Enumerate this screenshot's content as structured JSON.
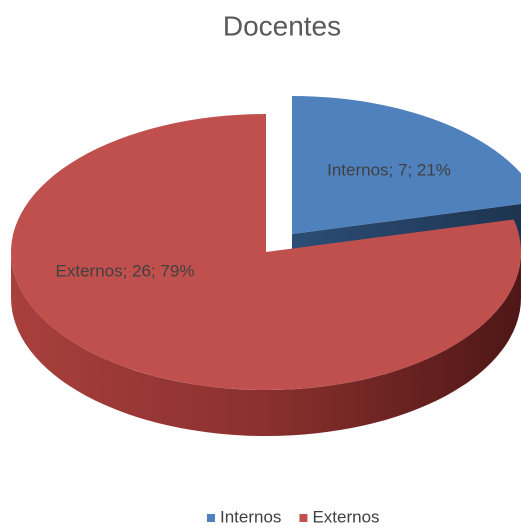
{
  "chart_data": {
    "type": "pie",
    "title": "Docentes",
    "categories": [
      "Internos",
      "Externos"
    ],
    "values": [
      7,
      26
    ],
    "value_labels": [
      "Internos; 7; 21%",
      "Externos; 26; 79%"
    ],
    "colors": [
      "#4f81bd",
      "#c0504d"
    ],
    "legend": "bottom"
  }
}
